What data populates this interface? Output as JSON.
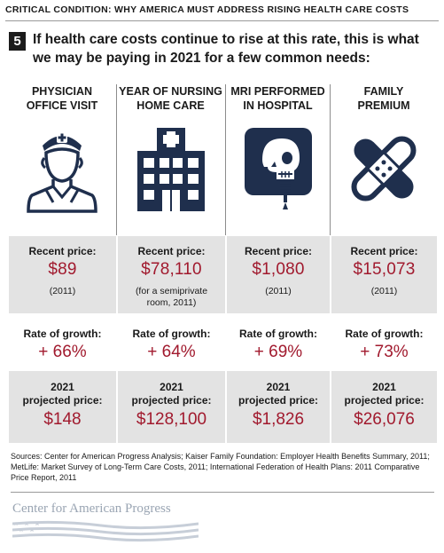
{
  "header": {
    "title": "CRITICAL CONDITION: WHY AMERICA MUST ADDRESS RISING HEALTH CARE COSTS",
    "section_number": "5",
    "headline": "If health care costs continue to rise at this rate, this is what we may be paying in 2021 for a few common needs:"
  },
  "columns": [
    {
      "title": "PHYSICIAN\nOFFICE VISIT",
      "icon": "doctor-icon",
      "recent_label": "Recent price:",
      "recent_price": "$89",
      "recent_note": "(2011)",
      "growth_label": "Rate of growth:",
      "growth": "+ 66%",
      "projected_label": "2021\nprojected price:",
      "projected_price": "$148"
    },
    {
      "title": "YEAR OF NURSING\nHOME CARE",
      "icon": "hospital-building-icon",
      "recent_label": "Recent price:",
      "recent_price": "$78,110",
      "recent_note": "(for a semiprivate room, 2011)",
      "growth_label": "Rate of growth:",
      "growth": "+ 64%",
      "projected_label": "2021\nprojected price:",
      "projected_price": "$128,100"
    },
    {
      "title": "MRI PERFORMED\nIN HOSPITAL",
      "icon": "mri-skull-icon",
      "recent_label": "Recent price:",
      "recent_price": "$1,080",
      "recent_note": "(2011)",
      "growth_label": "Rate of growth:",
      "growth": "+ 69%",
      "projected_label": "2021\nprojected price:",
      "projected_price": "$1,826"
    },
    {
      "title": "FAMILY\nPREMIUM",
      "icon": "bandage-icon",
      "recent_label": "Recent price:",
      "recent_price": "$15,073",
      "recent_note": "(2011)",
      "growth_label": "Rate of growth:",
      "growth": "+ 73%",
      "projected_label": "2021\nprojected price:",
      "projected_price": "$26,076"
    }
  ],
  "footer": {
    "sources": "Sources: Center for American Progress Analysis; Kaiser Family Foundation: Employer Health Benefits Summary, 2011; MetLife: Market Survey of Long-Term Care Costs, 2011; International Federation of Health Plans: 2011 Comparative Price Report, 2011",
    "logo_text": "Center for American Progress"
  },
  "colors": {
    "accent_red": "#a11a2e",
    "icon_navy": "#1f2f4d",
    "band_gray": "#e3e3e3"
  }
}
